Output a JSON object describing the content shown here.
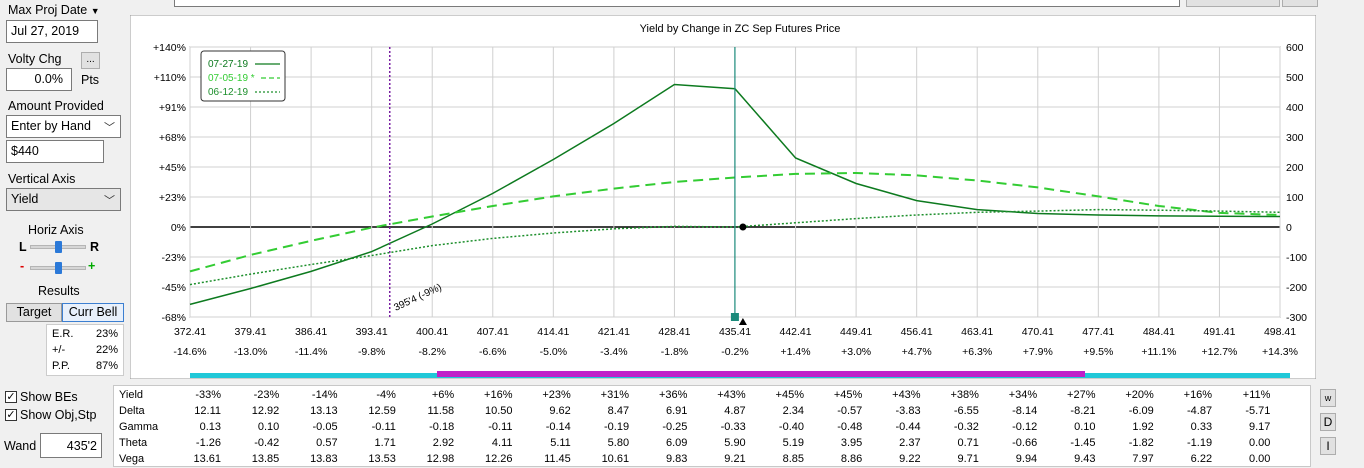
{
  "controls": {
    "max_proj_date_label": "Max Proj Date",
    "max_proj_date_value": "Jul 27, 2019",
    "volty_chg_label": "Volty Chg",
    "volty_chg_value": "0.0%",
    "volty_unit": "Pts",
    "ellipsis_button": "...",
    "amount_provided_label": "Amount Provided",
    "amount_mode": "Enter by Hand",
    "amount_value": "$440",
    "vertical_axis_label": "Vertical Axis",
    "vertical_axis_value": "Yield",
    "horiz_axis_label": "Horiz Axis",
    "slider_left": "L",
    "slider_right": "R",
    "slider_minus": "-",
    "slider_plus": "+",
    "results_label": "Results",
    "tab_target": "Target",
    "tab_curr_bell": "Curr Bell",
    "stats": [
      {
        "label": "E.R.",
        "value": "23%"
      },
      {
        "label": "+/-",
        "value": "22%"
      },
      {
        "label": "P.P.",
        "value": "87%"
      }
    ],
    "show_bes": "Show BEs",
    "show_obj_stp": "Show Obj,Stp",
    "wand_label": "Wand",
    "wand_value": "435'2"
  },
  "colors": {
    "curve_main": "#0d7a1f",
    "curve_mid": "#33cc33",
    "curve_early": "#1d8f2c",
    "marker": "#7a1fa3",
    "bar_cyan": "#20c8d8",
    "bar_magenta": "#c020c8",
    "center_line": "#1a8a7a"
  },
  "chart_data": {
    "type": "line",
    "title": "Yield by Change in ZC Sep Futures Price",
    "x": [
      372.41,
      379.41,
      386.41,
      393.41,
      400.41,
      407.41,
      414.41,
      421.41,
      428.41,
      435.41,
      442.41,
      449.41,
      456.41,
      463.41,
      470.41,
      477.41,
      484.41,
      491.41,
      498.41
    ],
    "x_pct_labels": [
      "-14.6%",
      "-13.0%",
      "-11.4%",
      "-9.8%",
      "-8.2%",
      "-6.6%",
      "-5.0%",
      "-3.4%",
      "-1.8%",
      "-0.2%",
      "+1.4%",
      "+3.0%",
      "+4.7%",
      "+6.3%",
      "+7.9%",
      "+9.5%",
      "+11.1%",
      "+12.7%",
      "+14.3%"
    ],
    "y_left_ticks": [
      "+140%",
      "+110%",
      "+91%",
      "+68%",
      "+45%",
      "+23%",
      "0%",
      "-23%",
      "-45%",
      "-68%"
    ],
    "y_right_ticks": [
      "600",
      "500",
      "400",
      "300",
      "200",
      "100",
      "0",
      "-100",
      "-200",
      "-300"
    ],
    "ylim": [
      -300,
      600
    ],
    "xlim": [
      372.41,
      498.41
    ],
    "series": [
      {
        "name": "07-27-19",
        "style": "solid",
        "values": [
          -258,
          -205,
          -148,
          -82,
          10,
          112,
          225,
          345,
          475,
          461,
          230,
          145,
          88,
          58,
          45,
          40,
          37,
          36,
          35
        ]
      },
      {
        "name": "07-05-19 *",
        "style": "dashed",
        "values": [
          -148,
          -93,
          -46,
          -2,
          35,
          70,
          102,
          128,
          150,
          165,
          177,
          180,
          172,
          155,
          132,
          102,
          70,
          47,
          40
        ]
      },
      {
        "name": "06-12-19",
        "style": "dotted",
        "values": [
          -192,
          -157,
          -125,
          -95,
          -62,
          -38,
          -20,
          -6,
          2,
          0,
          14,
          28,
          40,
          49,
          53,
          58,
          56,
          53,
          49
        ]
      }
    ],
    "vline_label": "395'4 (-9%)",
    "vline_x": 395.5,
    "current_x": 435.4,
    "grid": true,
    "legend_position": "top-left"
  },
  "greeks": {
    "rows": [
      {
        "name": "Yield",
        "values": [
          "-33%",
          "-23%",
          "-14%",
          "-4%",
          "+6%",
          "+16%",
          "+23%",
          "+31%",
          "+36%",
          "+43%",
          "+45%",
          "+45%",
          "+43%",
          "+38%",
          "+34%",
          "+27%",
          "+20%",
          "+16%",
          "+11%"
        ]
      },
      {
        "name": "Delta",
        "values": [
          "12.11",
          "12.92",
          "13.13",
          "12.59",
          "11.58",
          "10.50",
          "9.62",
          "8.47",
          "6.91",
          "4.87",
          "2.34",
          "-0.57",
          "-3.83",
          "-6.55",
          "-8.14",
          "-8.21",
          "-6.09",
          "-4.87",
          "-5.71"
        ]
      },
      {
        "name": "Gamma",
        "values": [
          "0.13",
          "0.10",
          "-0.05",
          "-0.11",
          "-0.18",
          "-0.11",
          "-0.14",
          "-0.19",
          "-0.25",
          "-0.33",
          "-0.40",
          "-0.48",
          "-0.44",
          "-0.32",
          "-0.12",
          "0.10",
          "1.92",
          "0.33",
          "9.17"
        ]
      },
      {
        "name": "Theta",
        "values": [
          "-1.26",
          "-0.42",
          "0.57",
          "1.71",
          "2.92",
          "4.11",
          "5.11",
          "5.80",
          "6.09",
          "5.90",
          "5.19",
          "3.95",
          "2.37",
          "0.71",
          "-0.66",
          "-1.45",
          "-1.82",
          "-1.19",
          "0.00"
        ]
      },
      {
        "name": "Vega",
        "values": [
          "13.61",
          "13.85",
          "13.83",
          "13.53",
          "12.98",
          "12.26",
          "11.45",
          "10.61",
          "9.83",
          "9.21",
          "8.85",
          "8.86",
          "9.22",
          "9.71",
          "9.94",
          "9.43",
          "7.97",
          "6.22",
          "0.00"
        ]
      }
    ],
    "side_buttons": [
      "w",
      "D",
      "I"
    ]
  }
}
